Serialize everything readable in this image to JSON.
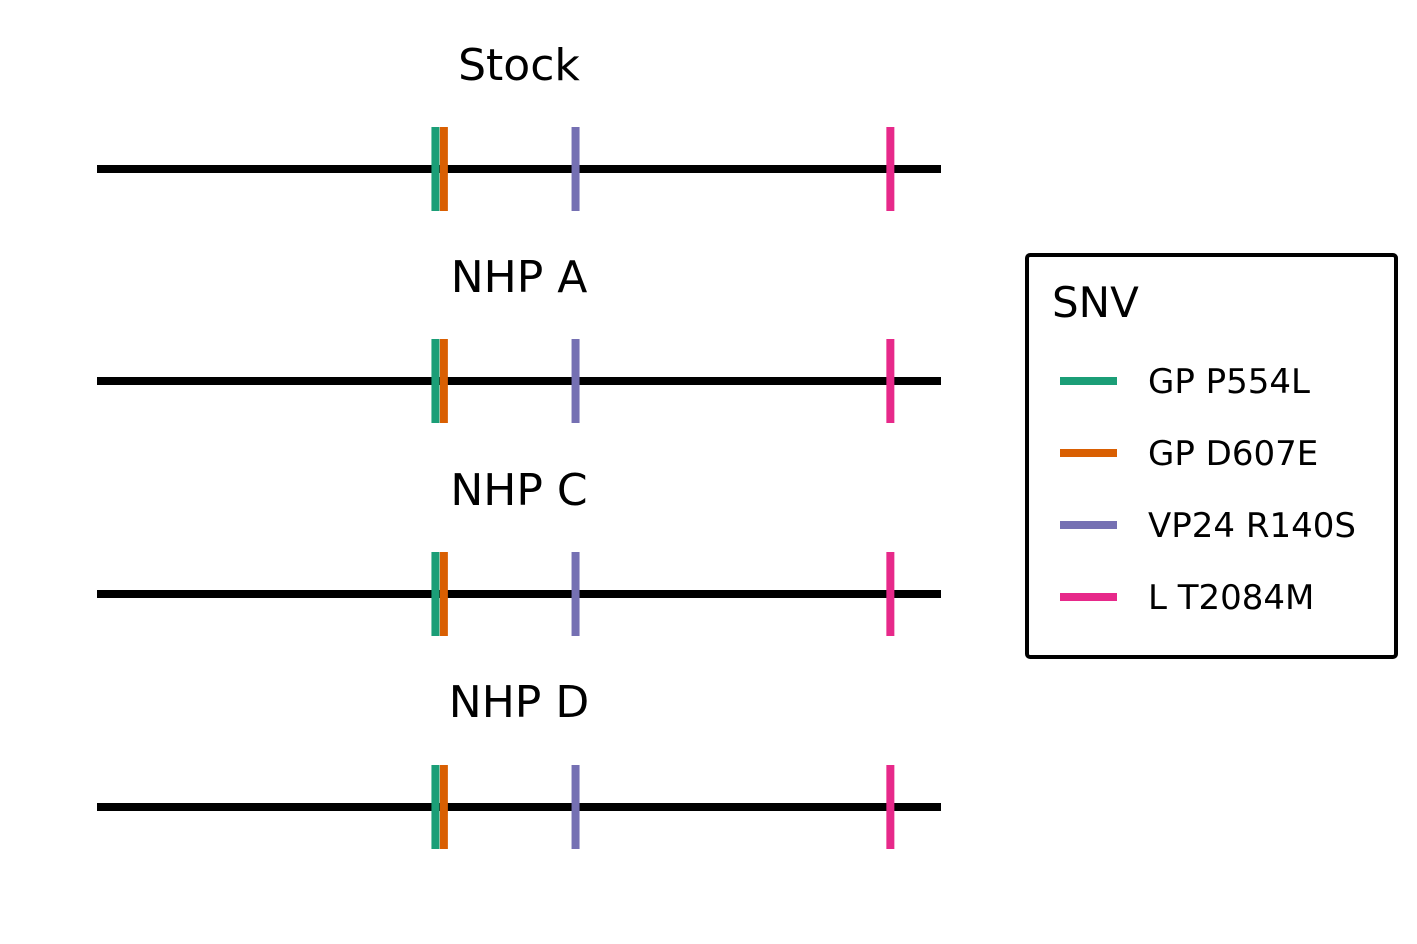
{
  "chart_data": {
    "type": "event-track",
    "legend": {
      "title": "SNV",
      "placement": "right"
    },
    "snvs": [
      {
        "name": "GP P554L",
        "color": "#1b9e77",
        "position": 0.401
      },
      {
        "name": "GP D607E",
        "color": "#d95f02",
        "position": 0.411
      },
      {
        "name": "VP24 R140S",
        "color": "#7570b3",
        "position": 0.567
      },
      {
        "name": "L T2084M",
        "color": "#e7298a",
        "position": 0.94
      }
    ],
    "panels": [
      {
        "title": "Stock",
        "snvs": [
          "GP P554L",
          "GP D607E",
          "VP24 R140S",
          "L T2084M"
        ]
      },
      {
        "title": "NHP A",
        "snvs": [
          "GP P554L",
          "GP D607E",
          "VP24 R140S",
          "L T2084M"
        ]
      },
      {
        "title": "NHP C",
        "snvs": [
          "GP P554L",
          "GP D607E",
          "VP24 R140S",
          "L T2084M"
        ]
      },
      {
        "title": "NHP D",
        "snvs": [
          "GP P554L",
          "GP D607E",
          "VP24 R140S",
          "L T2084M"
        ]
      }
    ],
    "xlim": [
      0,
      1
    ],
    "grid": false
  }
}
